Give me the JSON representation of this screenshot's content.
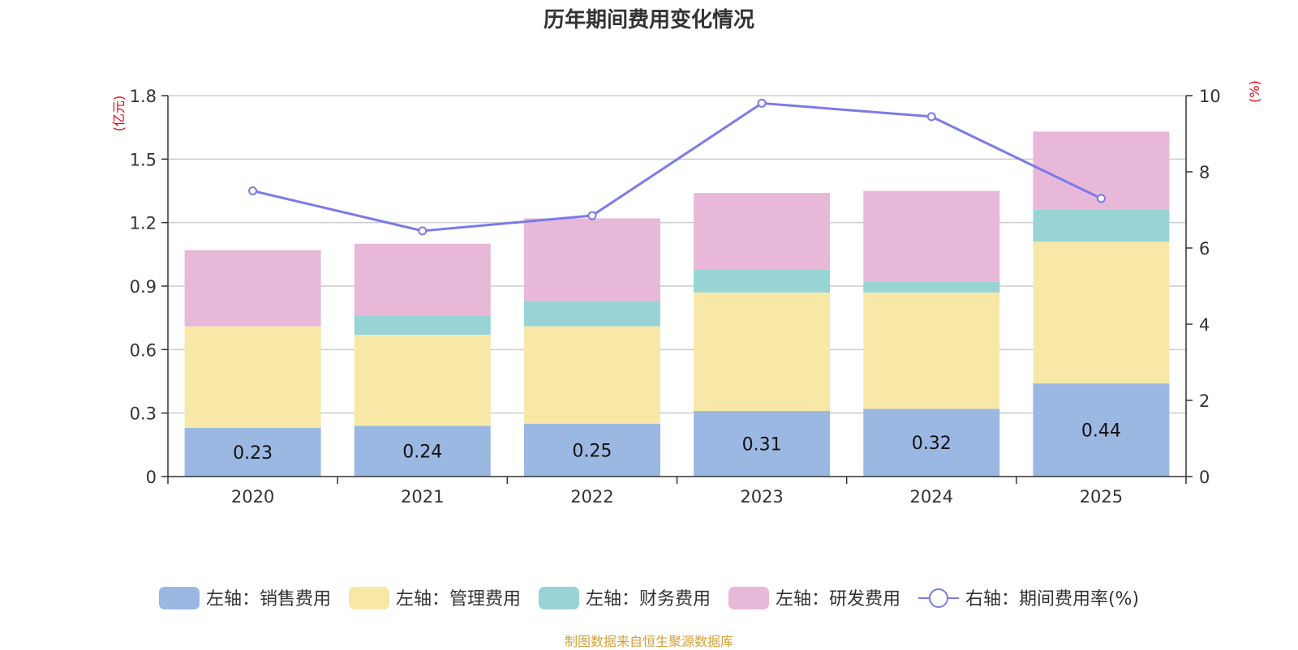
{
  "chart_data": {
    "type": "bar",
    "title": "历年期间费用变化情况",
    "categories": [
      "2020",
      "2021",
      "2022",
      "2023",
      "2024",
      "2025"
    ],
    "series": [
      {
        "name": "左轴：销售费用",
        "axis": "left",
        "color": "#9bb8e3",
        "values": [
          0.23,
          0.24,
          0.25,
          0.31,
          0.32,
          0.44
        ],
        "labels": [
          "0.23",
          "0.24",
          "0.25",
          "0.31",
          "0.32",
          "0.44"
        ]
      },
      {
        "name": "左轴：管理费用",
        "axis": "left",
        "color": "#f8e8a8",
        "values": [
          0.48,
          0.43,
          0.46,
          0.56,
          0.55,
          0.67
        ]
      },
      {
        "name": "左轴：财务费用",
        "axis": "left",
        "color": "#98d4d5",
        "values": [
          0.0,
          0.09,
          0.12,
          0.11,
          0.05,
          0.15
        ]
      },
      {
        "name": "左轴：研发费用",
        "axis": "left",
        "color": "#e8b8d8",
        "values": [
          0.36,
          0.34,
          0.39,
          0.36,
          0.43,
          0.37
        ]
      },
      {
        "name": "右轴：期间费用率(%)",
        "axis": "right",
        "type": "line",
        "color": "#7b7be8",
        "values": [
          7.5,
          6.45,
          6.85,
          9.8,
          9.45,
          7.3
        ]
      }
    ],
    "left_axis": {
      "label": "(亿元)",
      "ylim": [
        0,
        1.8
      ],
      "ticks": [
        "0",
        "0.3",
        "0.6",
        "0.9",
        "1.2",
        "1.5",
        "1.8"
      ]
    },
    "right_axis": {
      "label": "(%)",
      "ylim": [
        0,
        10
      ],
      "ticks": [
        "0",
        "2",
        "4",
        "6",
        "8",
        "10"
      ]
    },
    "legend_position": "bottom",
    "grid": true
  },
  "footer": "制图数据来自恒生聚源数据库"
}
